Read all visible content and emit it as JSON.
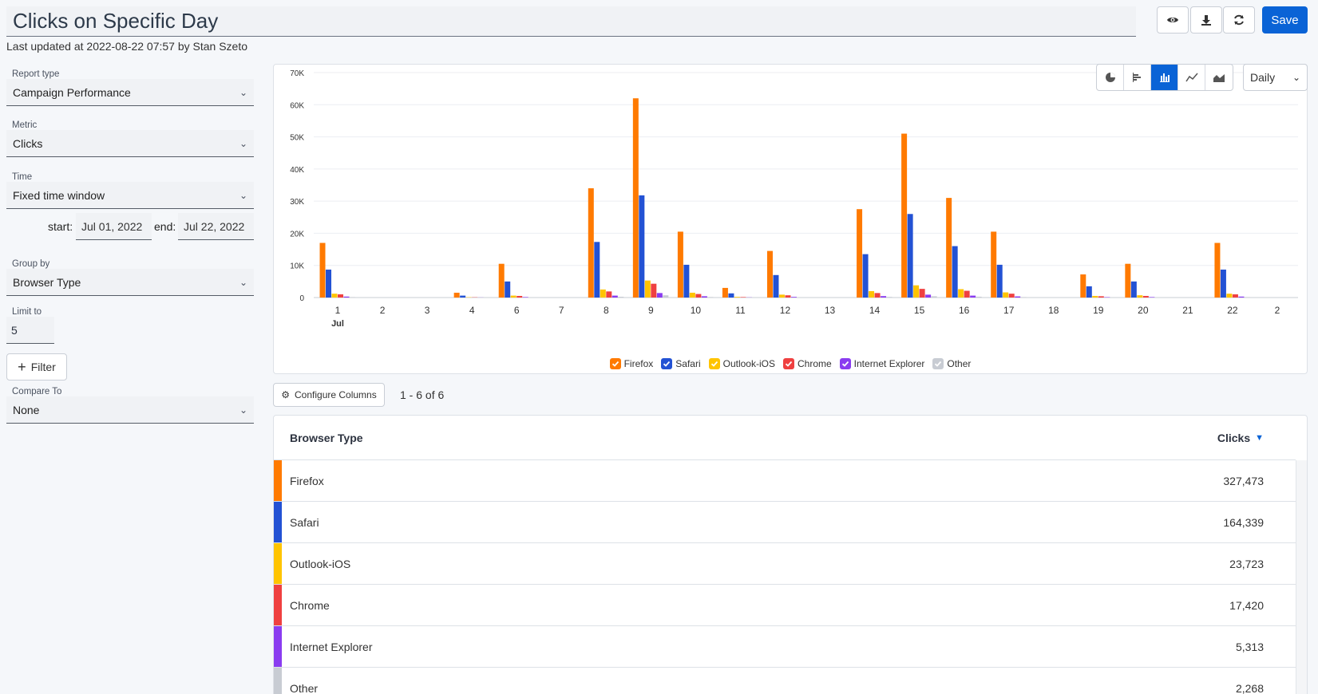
{
  "header": {
    "title": "Clicks on Specific Day",
    "last_updated": "Last updated at 2022-08-22 07:57 by Stan Szeto",
    "save_label": "Save"
  },
  "sidebar": {
    "report_type": {
      "label": "Report type",
      "value": "Campaign Performance"
    },
    "metric": {
      "label": "Metric",
      "value": "Clicks"
    },
    "time": {
      "label": "Time",
      "value": "Fixed time window",
      "start_label": "start:",
      "start_value": "Jul 01, 2022",
      "end_label": "end:",
      "end_value": "Jul 22, 2022"
    },
    "group_by": {
      "label": "Group by",
      "value": "Browser Type"
    },
    "limit": {
      "label": "Limit to",
      "value": "5"
    },
    "filter_label": "Filter",
    "compare": {
      "label": "Compare To",
      "value": "None"
    }
  },
  "chart_controls": {
    "granularity": "Daily",
    "types": [
      "pie-chart-icon",
      "bar-horizontal-icon",
      "bar-vertical-icon",
      "line-chart-icon",
      "area-chart-icon"
    ],
    "active_type": "bar-vertical-icon"
  },
  "chart_data": {
    "type": "bar",
    "categories": [
      "1",
      "2",
      "3",
      "4",
      "6",
      "7",
      "8",
      "9",
      "10",
      "11",
      "12",
      "13",
      "14",
      "15",
      "16",
      "17",
      "18",
      "19",
      "20",
      "21",
      "22",
      "2"
    ],
    "month_label": "Jul",
    "y_ticks": [
      "0",
      "10K",
      "20K",
      "30K",
      "40K",
      "50K",
      "60K",
      "70K"
    ],
    "ylim": [
      0,
      70000
    ],
    "series": [
      {
        "name": "Firefox",
        "color": "#ff7a00",
        "values": [
          17000,
          0,
          0,
          1500,
          10500,
          0,
          34000,
          62000,
          20500,
          3000,
          14500,
          0,
          27500,
          51000,
          31000,
          20500,
          0,
          7200,
          10500,
          0,
          17000,
          0
        ]
      },
      {
        "name": "Safari",
        "color": "#2352d4",
        "values": [
          8700,
          0,
          0,
          600,
          5000,
          0,
          17300,
          31800,
          10200,
          1300,
          7000,
          0,
          13500,
          26000,
          16000,
          10200,
          0,
          3500,
          5000,
          0,
          8700,
          0
        ]
      },
      {
        "name": "Outlook-iOS",
        "color": "#ffc400",
        "values": [
          1200,
          0,
          0,
          100,
          600,
          0,
          2500,
          5300,
          1500,
          200,
          900,
          0,
          2000,
          3800,
          2600,
          1600,
          0,
          500,
          700,
          0,
          1200,
          0
        ]
      },
      {
        "name": "Chrome",
        "color": "#ef4040",
        "values": [
          1000,
          0,
          0,
          80,
          500,
          0,
          1900,
          4300,
          1100,
          150,
          700,
          0,
          1400,
          2700,
          2100,
          1200,
          0,
          400,
          500,
          0,
          1000,
          0
        ]
      },
      {
        "name": "Internet Explorer",
        "color": "#8a3cf0",
        "values": [
          300,
          0,
          0,
          30,
          150,
          0,
          600,
          1400,
          400,
          50,
          200,
          0,
          450,
          900,
          600,
          350,
          0,
          120,
          150,
          0,
          300,
          0
        ]
      },
      {
        "name": "Other",
        "color": "#c8ccd3",
        "values": [
          150,
          0,
          0,
          10,
          70,
          0,
          250,
          700,
          170,
          20,
          90,
          0,
          200,
          400,
          260,
          150,
          0,
          50,
          70,
          0,
          150,
          0
        ]
      }
    ]
  },
  "table": {
    "configure_label": "Configure Columns",
    "pager": "1 - 6 of 6",
    "columns": [
      "Browser Type",
      "Clicks"
    ],
    "rows": [
      {
        "name": "Firefox",
        "value": "327,473",
        "color": "#ff7a00"
      },
      {
        "name": "Safari",
        "value": "164,339",
        "color": "#2352d4"
      },
      {
        "name": "Outlook-iOS",
        "value": "23,723",
        "color": "#ffc400"
      },
      {
        "name": "Chrome",
        "value": "17,420",
        "color": "#ef4040"
      },
      {
        "name": "Internet Explorer",
        "value": "5,313",
        "color": "#8a3cf0"
      },
      {
        "name": "Other",
        "value": "2,268",
        "color": "#c8ccd3"
      }
    ]
  }
}
